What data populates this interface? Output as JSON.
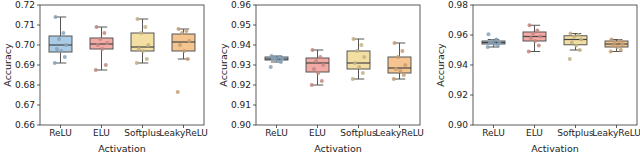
{
  "chart_data": [
    {
      "type": "box",
      "x_label": "Activation",
      "y_label": "Accuracy",
      "categories": [
        "ReLU",
        "ELU",
        "Softplus",
        "LeakyReLU"
      ],
      "colors": [
        "#a9cbe6",
        "#f4aaa4",
        "#f3dfa2",
        "#f6c58f"
      ],
      "ylim": [
        0.66,
        0.72
      ],
      "yticks": [
        {
          "value": 0.66,
          "label": "0.66"
        },
        {
          "value": 0.67,
          "label": "0.67"
        },
        {
          "value": 0.68,
          "label": "0.68"
        },
        {
          "value": 0.69,
          "label": "0.69"
        },
        {
          "value": 0.7,
          "label": "0.70"
        },
        {
          "value": 0.71,
          "label": "0.71"
        },
        {
          "value": 0.72,
          "label": "0.72"
        }
      ],
      "boxes": [
        {
          "low": 0.691,
          "q1": 0.6965,
          "median": 0.7,
          "q3": 0.7045,
          "high": 0.714
        },
        {
          "low": 0.6875,
          "q1": 0.698,
          "median": 0.7005,
          "q3": 0.7035,
          "high": 0.709
        },
        {
          "low": 0.691,
          "q1": 0.697,
          "median": 0.699,
          "q3": 0.706,
          "high": 0.713
        },
        {
          "low": 0.693,
          "q1": 0.697,
          "median": 0.7015,
          "q3": 0.7055,
          "high": 0.708
        }
      ],
      "points": [
        [
          0.714,
          0.706,
          0.703,
          0.7,
          0.698,
          0.697,
          0.694,
          0.691
        ],
        [
          0.709,
          0.706,
          0.703,
          0.701,
          0.7,
          0.698,
          0.69,
          0.6875
        ],
        [
          0.713,
          0.709,
          0.706,
          0.7,
          0.698,
          0.697,
          0.693,
          0.691
        ],
        [
          0.708,
          0.707,
          0.706,
          0.702,
          0.7,
          0.697,
          0.693,
          0.6765
        ]
      ]
    },
    {
      "type": "box",
      "x_label": "Activation",
      "y_label": "Accuracy",
      "categories": [
        "ReLU",
        "ELU",
        "Softplus",
        "LeakyReLU"
      ],
      "colors": [
        "#a9cbe6",
        "#f4aaa4",
        "#f3dfa2",
        "#f6c58f"
      ],
      "ylim": [
        0.9,
        0.96
      ],
      "yticks": [
        {
          "value": 0.9,
          "label": "0.90"
        },
        {
          "value": 0.91,
          "label": "0.91"
        },
        {
          "value": 0.92,
          "label": "0.92"
        },
        {
          "value": 0.93,
          "label": "0.93"
        },
        {
          "value": 0.94,
          "label": "0.94"
        },
        {
          "value": 0.95,
          "label": "0.95"
        },
        {
          "value": 0.96,
          "label": "0.96"
        }
      ],
      "boxes": [
        {
          "low": 0.9315,
          "q1": 0.9325,
          "median": 0.933,
          "q3": 0.934,
          "high": 0.9345
        },
        {
          "low": 0.92,
          "q1": 0.9265,
          "median": 0.931,
          "q3": 0.9335,
          "high": 0.9375
        },
        {
          "low": 0.923,
          "q1": 0.928,
          "median": 0.931,
          "q3": 0.937,
          "high": 0.943
        },
        {
          "low": 0.923,
          "q1": 0.926,
          "median": 0.9285,
          "q3": 0.934,
          "high": 0.941
        }
      ],
      "points": [
        [
          0.9345,
          0.934,
          0.9335,
          0.933,
          0.933,
          0.932,
          0.9315,
          0.929
        ],
        [
          0.9375,
          0.934,
          0.932,
          0.93,
          0.928,
          0.926,
          0.922,
          0.92
        ],
        [
          0.943,
          0.94,
          0.937,
          0.934,
          0.931,
          0.929,
          0.926,
          0.923
        ],
        [
          0.941,
          0.937,
          0.934,
          0.93,
          0.928,
          0.927,
          0.925,
          0.923
        ]
      ]
    },
    {
      "type": "box",
      "x_label": "Activation",
      "y_label": "Accuracy",
      "categories": [
        "ReLU",
        "ELU",
        "Softplus",
        "LeakyReLU"
      ],
      "colors": [
        "#a9cbe6",
        "#f4aaa4",
        "#f3dfa2",
        "#f6c58f"
      ],
      "ylim": [
        0.9,
        0.98
      ],
      "yticks": [
        {
          "value": 0.9,
          "label": "0.90"
        },
        {
          "value": 0.92,
          "label": "0.92"
        },
        {
          "value": 0.94,
          "label": "0.94"
        },
        {
          "value": 0.96,
          "label": "0.96"
        },
        {
          "value": 0.98,
          "label": "0.98"
        }
      ],
      "boxes": [
        {
          "low": 0.952,
          "q1": 0.954,
          "median": 0.955,
          "q3": 0.956,
          "high": 0.957
        },
        {
          "low": 0.949,
          "q1": 0.956,
          "median": 0.959,
          "q3": 0.962,
          "high": 0.9665
        },
        {
          "low": 0.95,
          "q1": 0.9535,
          "median": 0.957,
          "q3": 0.9595,
          "high": 0.961
        },
        {
          "low": 0.949,
          "q1": 0.952,
          "median": 0.954,
          "q3": 0.956,
          "high": 0.957
        }
      ],
      "points": [
        [
          0.9605,
          0.957,
          0.956,
          0.955,
          0.955,
          0.954,
          0.953,
          0.952
        ],
        [
          0.9665,
          0.963,
          0.961,
          0.959,
          0.958,
          0.956,
          0.953,
          0.949
        ],
        [
          0.961,
          0.96,
          0.959,
          0.957,
          0.955,
          0.953,
          0.95,
          0.944
        ],
        [
          0.957,
          0.956,
          0.955,
          0.954,
          0.953,
          0.952,
          0.95,
          0.949
        ]
      ]
    }
  ]
}
